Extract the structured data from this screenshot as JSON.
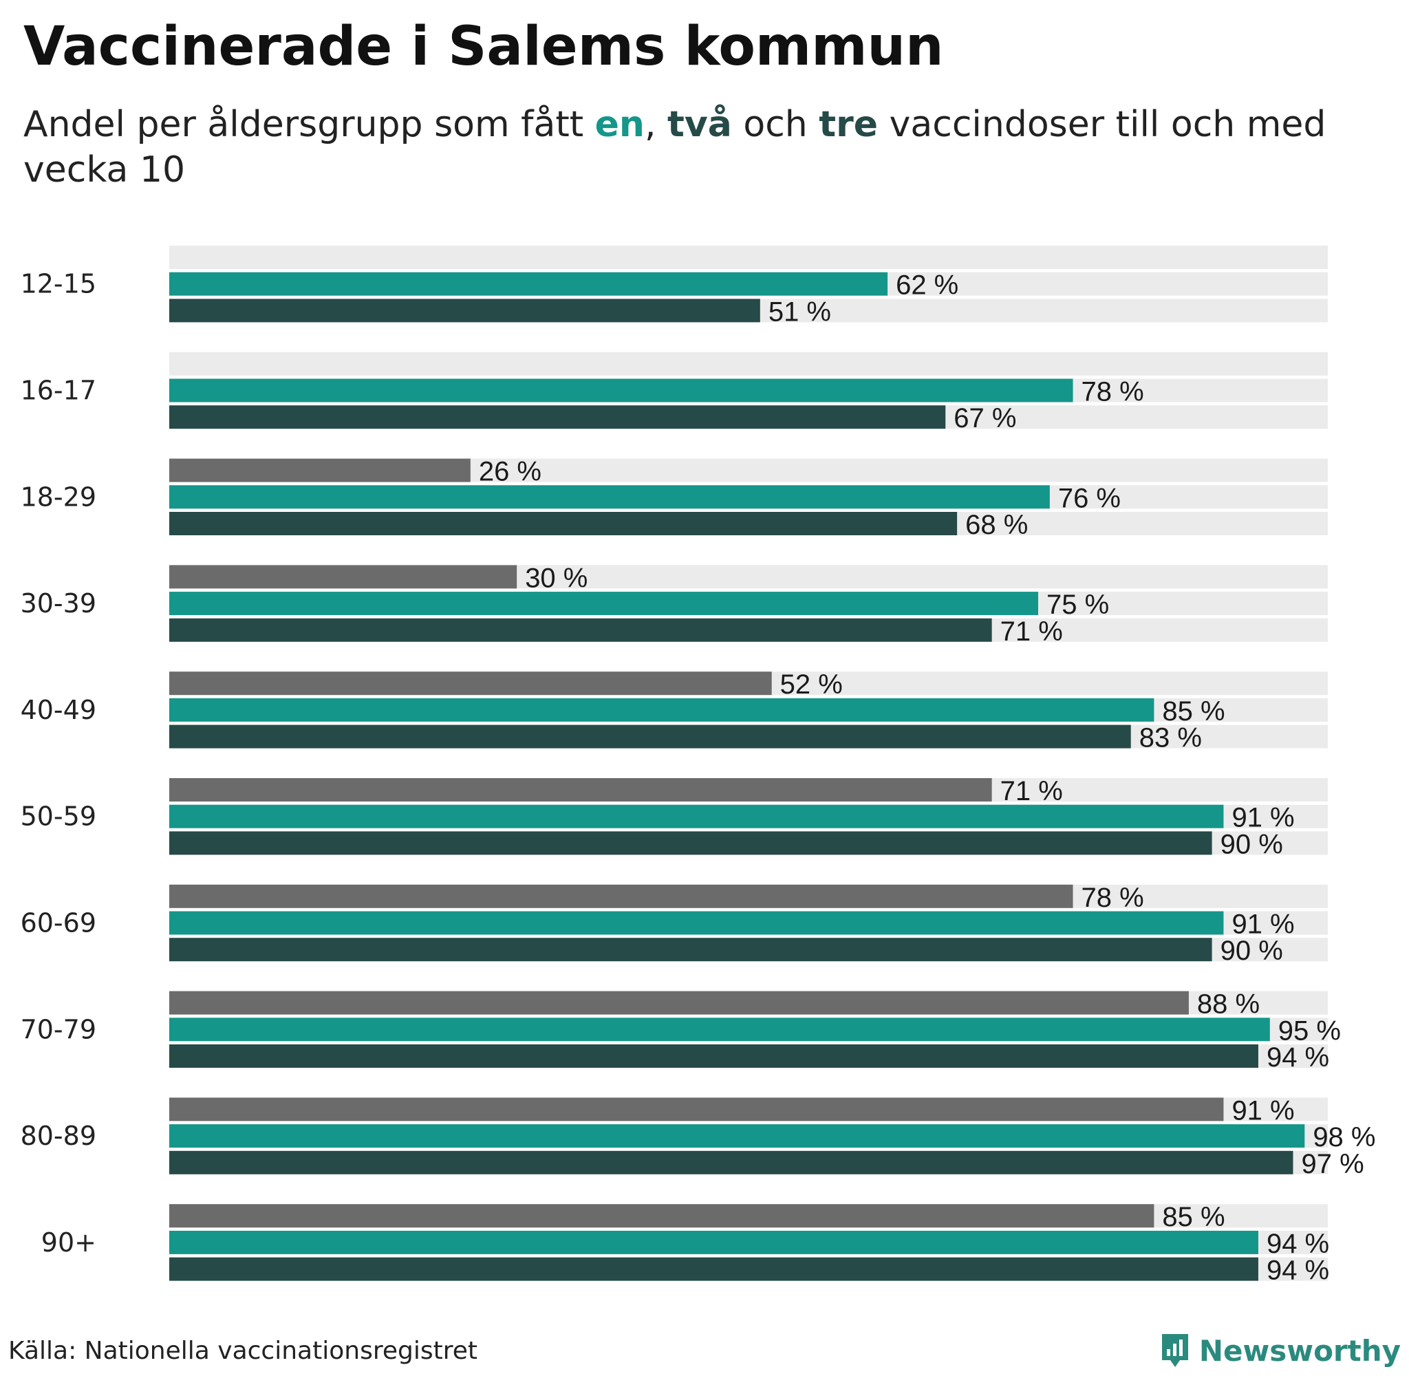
{
  "title": "Vaccinerade i Salems kommun",
  "subtitle": {
    "prefix": "Andel per åldersgrupp som fått ",
    "en": "en",
    "sep1": ", ",
    "tva": "två",
    "sep2": " och ",
    "tre": "tre",
    "suffix": " vaccindoser till och med vecka 10"
  },
  "colors": {
    "dose1": "#15968a",
    "dose2": "#264a47",
    "dose3": "#6b6b6b",
    "track": "#ebebeb"
  },
  "chart_data": {
    "type": "bar",
    "orientation": "horizontal",
    "title": "Vaccinerade i Salems kommun",
    "xlim": [
      0,
      100
    ],
    "unit": "%",
    "categories": [
      "12-15",
      "16-17",
      "18-29",
      "30-39",
      "40-49",
      "50-59",
      "60-69",
      "70-79",
      "80-89",
      "90+"
    ],
    "series": [
      {
        "name": "tre",
        "color_key": "dose3",
        "values": [
          null,
          null,
          26,
          30,
          52,
          71,
          78,
          88,
          91,
          85
        ]
      },
      {
        "name": "en",
        "color_key": "dose1",
        "values": [
          62,
          78,
          76,
          75,
          85,
          91,
          91,
          95,
          98,
          94
        ]
      },
      {
        "name": "två",
        "color_key": "dose2",
        "values": [
          51,
          67,
          68,
          71,
          83,
          90,
          90,
          94,
          97,
          94
        ]
      }
    ]
  },
  "footer": {
    "source": "Källa: Nationella vaccinationsregistret",
    "brand": "Newsworthy"
  }
}
